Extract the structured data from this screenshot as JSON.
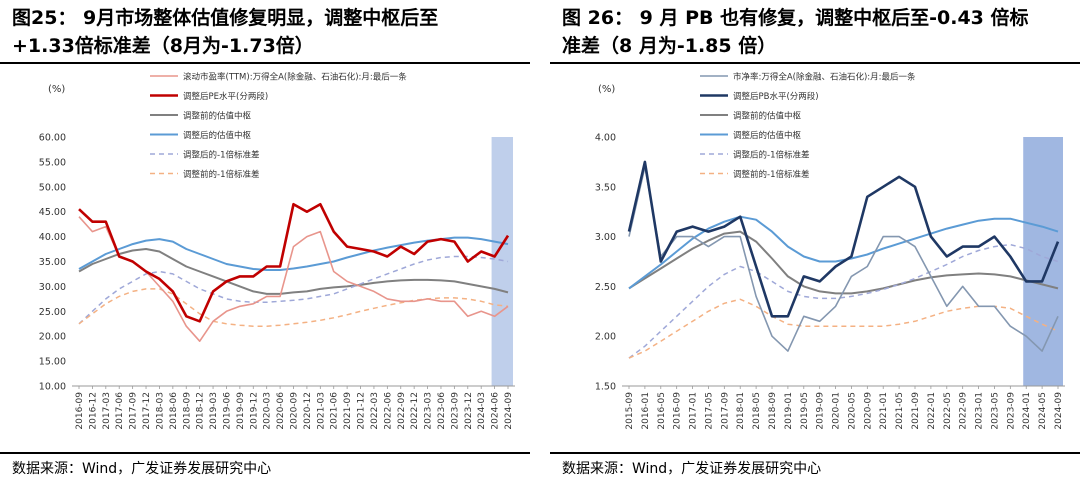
{
  "left": {
    "title_line1": "图25：  9月市场整体估值修复明显，调整中枢后至",
    "title_line2": "+1.33倍标准差（8月为-1.73倍）",
    "source": "数据来源：Wind，广发证券发展研究中心",
    "chart_data": {
      "type": "line",
      "title": "",
      "unit_label": "(%)",
      "xlabel": "",
      "ylabel": "",
      "ylim": [
        10,
        60
      ],
      "yticks": [
        "10.00",
        "15.00",
        "20.00",
        "25.00",
        "30.00",
        "35.00",
        "40.00",
        "45.00",
        "50.00",
        "55.00",
        "60.00"
      ],
      "x_dates": [
        "2016-09",
        "2016-12",
        "2017-03",
        "2017-06",
        "2017-09",
        "2017-12",
        "2018-03",
        "2018-06",
        "2018-09",
        "2018-12",
        "2019-03",
        "2019-06",
        "2019-09",
        "2019-12",
        "2020-03",
        "2020-06",
        "2020-09",
        "2020-12",
        "2021-03",
        "2021-06",
        "2021-09",
        "2021-12",
        "2022-03",
        "2022-06",
        "2022-09",
        "2022-12",
        "2023-03",
        "2023-06",
        "2023-09",
        "2023-12",
        "2024-03",
        "2024-06",
        "2024-09"
      ],
      "shaded_range": [
        "2024-06",
        "2024-09"
      ],
      "grid": false,
      "legend_position": "top-center",
      "colors": {
        "ttm": "#E8958C",
        "adjusted_pe": "#C00000",
        "old_center": "#808080",
        "new_center": "#5B9BD5",
        "new_minus1sd": "#9FA8D8",
        "old_minus1sd": "#F4B183",
        "shade": "#B4C7E7"
      },
      "series": [
        {
          "name": "滚动市盈率(TTM):万得全A(除金融、石油石化):月:最后一条",
          "style": "solid-thin",
          "values": [
            44,
            41,
            42,
            36,
            35,
            33,
            30,
            27,
            22,
            19,
            23,
            25,
            26,
            26.5,
            28,
            28,
            38,
            40,
            41,
            33,
            31,
            30,
            29,
            27.5,
            27,
            27,
            27.5,
            27,
            27,
            24,
            25,
            24,
            26
          ]
        },
        {
          "name": "调整后PE水平(分两段)",
          "style": "solid-thick",
          "values": [
            45.5,
            43,
            43,
            36,
            35,
            33,
            31.5,
            29,
            24,
            23,
            29,
            31,
            32,
            32,
            34,
            34,
            46.5,
            45,
            46.5,
            41,
            38,
            37.5,
            37,
            36,
            38,
            36.5,
            39,
            39.5,
            39,
            35,
            37,
            36,
            40.2
          ]
        },
        {
          "name": "调整前的估值中枢",
          "style": "solid-medium",
          "values": [
            33,
            34.5,
            35.5,
            36.5,
            37.2,
            37.5,
            37,
            35.5,
            34,
            33,
            32,
            31,
            30,
            29,
            28.5,
            28.5,
            28.8,
            29,
            29.5,
            29.8,
            30,
            30.3,
            30.7,
            31,
            31.2,
            31.3,
            31.3,
            31.2,
            31,
            30.5,
            30,
            29.5,
            28.8
          ]
        },
        {
          "name": "调整后的估值中枢",
          "style": "solid-medium",
          "values": [
            33.5,
            35,
            36.5,
            37.5,
            38.5,
            39.2,
            39.5,
            39,
            37.5,
            36.5,
            35.5,
            34.5,
            34,
            33.5,
            33.3,
            33.3,
            33.6,
            34,
            34.5,
            35,
            35.8,
            36.5,
            37.2,
            37.8,
            38.3,
            38.8,
            39.2,
            39.5,
            39.8,
            39.8,
            39.5,
            39,
            38.5
          ]
        },
        {
          "name": "调整后的-1倍标准差",
          "style": "dashed",
          "values": [
            22.5,
            25,
            27.5,
            29.5,
            31,
            32.5,
            33,
            32.5,
            31,
            29.5,
            28.5,
            27.5,
            27,
            26.8,
            26.8,
            27,
            27.2,
            27.5,
            28,
            28.5,
            29.5,
            30.5,
            31.5,
            32.5,
            33.5,
            34.5,
            35.3,
            35.8,
            36,
            36,
            35.8,
            35.5,
            35
          ]
        },
        {
          "name": "调整前的-1倍标准差",
          "style": "dashed",
          "values": [
            22.5,
            24.5,
            26.5,
            28,
            29,
            29.5,
            29.5,
            28.5,
            26.5,
            24.5,
            23,
            22.5,
            22.2,
            22,
            22,
            22.2,
            22.5,
            22.8,
            23.2,
            23.7,
            24.3,
            25,
            25.6,
            26.2,
            26.7,
            27.2,
            27.5,
            27.7,
            27.7,
            27.5,
            27,
            26.3,
            26
          ]
        }
      ]
    }
  },
  "right": {
    "title_line1": "图 26：  9 月 PB 也有修复，调整中枢后至-0.43 倍标",
    "title_line2": "准差（8 月为-1.85 倍）",
    "source": "数据来源：Wind，广发证券发展研究中心",
    "chart_data": {
      "type": "line",
      "title": "",
      "unit_label": "(%)",
      "xlabel": "",
      "ylabel": "",
      "ylim": [
        1.5,
        4.0
      ],
      "yticks": [
        "1.50",
        "2.00",
        "2.50",
        "3.00",
        "3.50",
        "4.00"
      ],
      "x_dates": [
        "2015-09",
        "2016-01",
        "2016-05",
        "2016-09",
        "2017-01",
        "2017-05",
        "2017-09",
        "2018-01",
        "2018-05",
        "2018-09",
        "2019-01",
        "2019-05",
        "2019-09",
        "2020-01",
        "2020-05",
        "2020-09",
        "2021-01",
        "2021-05",
        "2021-09",
        "2022-01",
        "2022-05",
        "2022-09",
        "2023-01",
        "2023-05",
        "2023-09",
        "2024-01",
        "2024-05",
        "2024-09"
      ],
      "shaded_range": [
        "2024-01",
        "2024-09"
      ],
      "grid": false,
      "legend_position": "top-center",
      "colors": {
        "pb": "#8497B0",
        "adjusted_pb": "#1F3864",
        "old_center": "#808080",
        "new_center": "#5B9BD5",
        "new_minus1sd": "#9FA8D8",
        "old_minus1sd": "#F4B183",
        "shade": "#8FAADC"
      },
      "series": [
        {
          "name": "市净率:万得全A(除金融、石油石化):月:最后一条",
          "style": "solid-thin",
          "values": [
            3.0,
            3.7,
            2.8,
            3.0,
            3.0,
            2.9,
            3.0,
            3.0,
            2.4,
            2.0,
            1.85,
            2.2,
            2.15,
            2.3,
            2.6,
            2.7,
            3.0,
            3.0,
            2.9,
            2.6,
            2.3,
            2.5,
            2.3,
            2.3,
            2.1,
            2.0,
            1.85,
            2.2
          ]
        },
        {
          "name": "调整后PB水平(分两段)",
          "style": "solid-thick",
          "values": [
            3.05,
            3.75,
            2.75,
            3.05,
            3.1,
            3.05,
            3.1,
            3.2,
            2.7,
            2.2,
            2.2,
            2.6,
            2.55,
            2.7,
            2.8,
            3.4,
            3.5,
            3.6,
            3.5,
            3.0,
            2.8,
            2.9,
            2.9,
            3.0,
            2.8,
            2.55,
            2.55,
            2.95
          ]
        },
        {
          "name": "调整前的估值中枢",
          "style": "solid-medium",
          "values": [
            2.48,
            2.58,
            2.68,
            2.78,
            2.88,
            2.96,
            3.03,
            3.05,
            2.95,
            2.78,
            2.6,
            2.5,
            2.45,
            2.43,
            2.43,
            2.45,
            2.48,
            2.52,
            2.56,
            2.59,
            2.61,
            2.62,
            2.63,
            2.62,
            2.6,
            2.56,
            2.52,
            2.48
          ]
        },
        {
          "name": "调整后的估值中枢",
          "style": "solid-medium",
          "values": [
            2.48,
            2.6,
            2.72,
            2.85,
            2.98,
            3.08,
            3.15,
            3.2,
            3.17,
            3.05,
            2.9,
            2.8,
            2.75,
            2.75,
            2.78,
            2.82,
            2.88,
            2.93,
            2.98,
            3.03,
            3.08,
            3.12,
            3.16,
            3.18,
            3.18,
            3.14,
            3.1,
            3.05
          ]
        },
        {
          "name": "调整后的-1倍标准差",
          "style": "dashed",
          "values": [
            1.78,
            1.9,
            2.05,
            2.2,
            2.35,
            2.5,
            2.62,
            2.7,
            2.65,
            2.55,
            2.45,
            2.4,
            2.38,
            2.38,
            2.4,
            2.43,
            2.47,
            2.52,
            2.58,
            2.65,
            2.72,
            2.8,
            2.86,
            2.9,
            2.92,
            2.88,
            2.8,
            2.75
          ]
        },
        {
          "name": "调整前的-1倍标准差",
          "style": "dashed",
          "values": [
            1.78,
            1.85,
            1.95,
            2.05,
            2.15,
            2.25,
            2.33,
            2.37,
            2.3,
            2.2,
            2.12,
            2.1,
            2.1,
            2.1,
            2.1,
            2.1,
            2.1,
            2.12,
            2.15,
            2.2,
            2.25,
            2.28,
            2.3,
            2.3,
            2.28,
            2.2,
            2.12,
            2.05
          ]
        }
      ]
    }
  }
}
